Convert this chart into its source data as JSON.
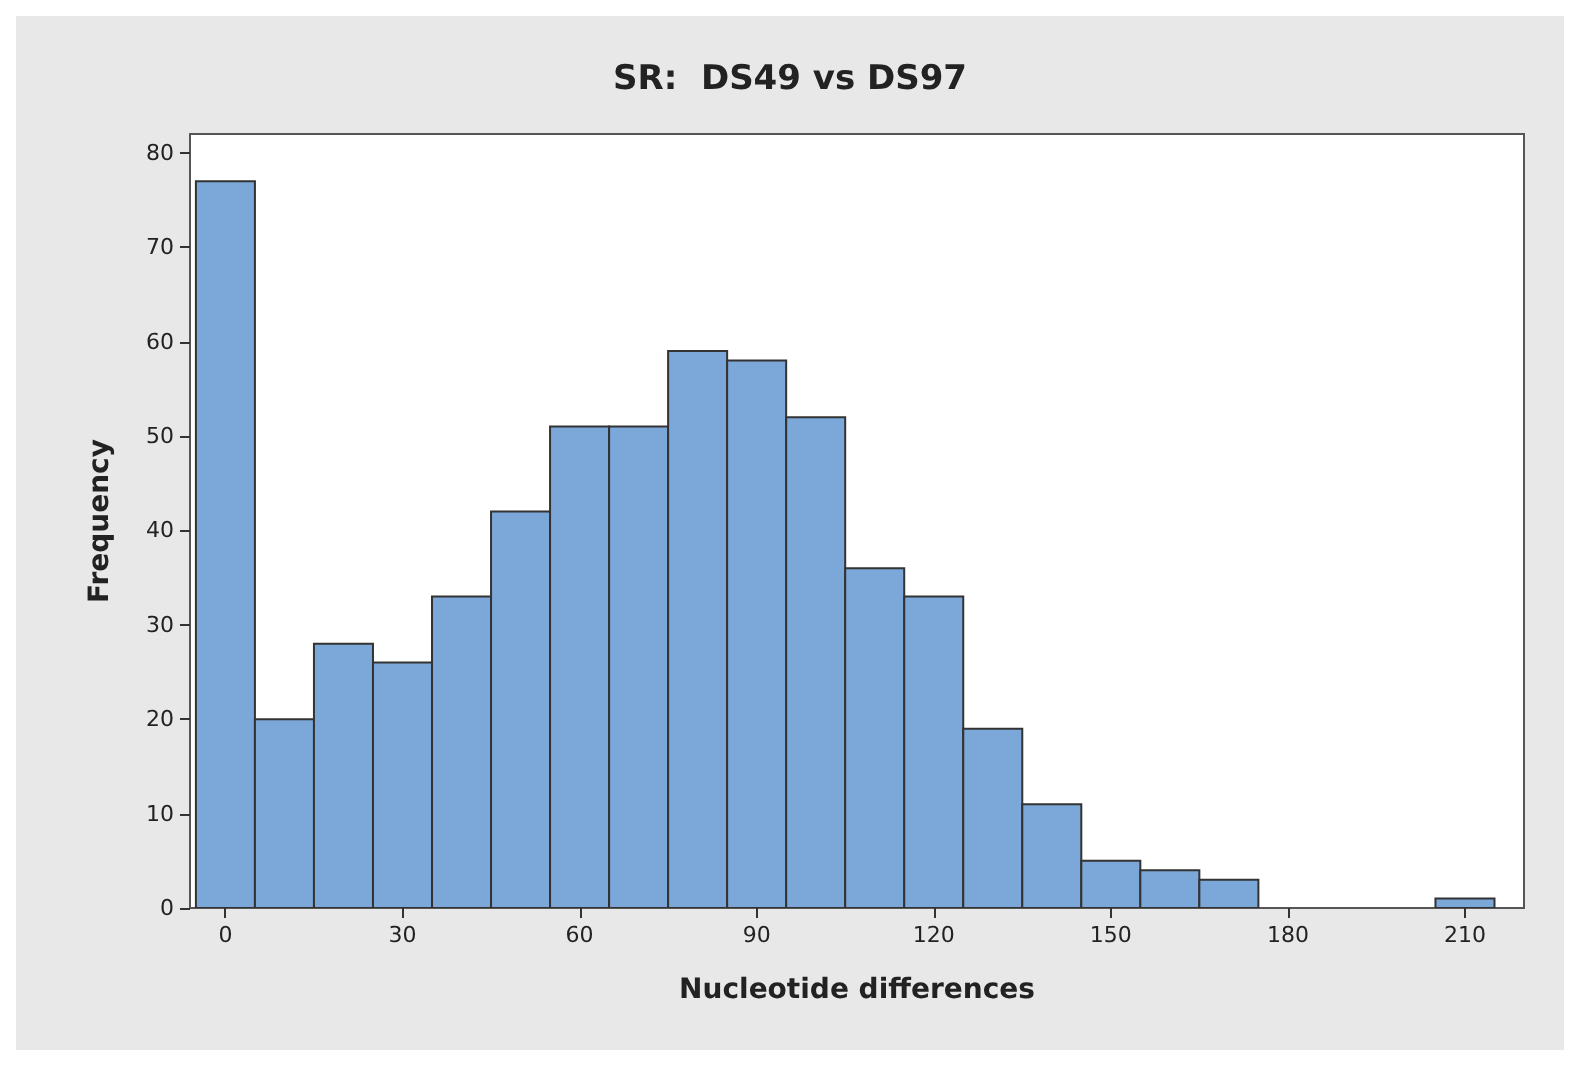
{
  "chart_data": {
    "type": "histogram",
    "title": "SR:  DS49 vs DS97",
    "xlabel": "Nucleotide differences",
    "ylabel": "Frequency",
    "bins": [
      -5,
      5,
      15,
      25,
      35,
      45,
      55,
      65,
      75,
      85,
      95,
      105,
      115,
      125,
      135,
      145,
      155,
      165,
      175,
      185,
      195,
      205,
      215
    ],
    "values": [
      77,
      20,
      28,
      26,
      33,
      42,
      51,
      51,
      59,
      58,
      52,
      36,
      33,
      19,
      11,
      5,
      4,
      3,
      0,
      0,
      0,
      1
    ],
    "color": "#7ba7d9",
    "xlim": [
      -6,
      220
    ],
    "xticks": [
      0,
      30,
      60,
      90,
      120,
      150,
      180,
      210
    ],
    "ylim": [
      0,
      82
    ],
    "yticks": [
      0,
      10,
      20,
      30,
      40,
      50,
      60,
      70,
      80
    ],
    "grid": false
  }
}
